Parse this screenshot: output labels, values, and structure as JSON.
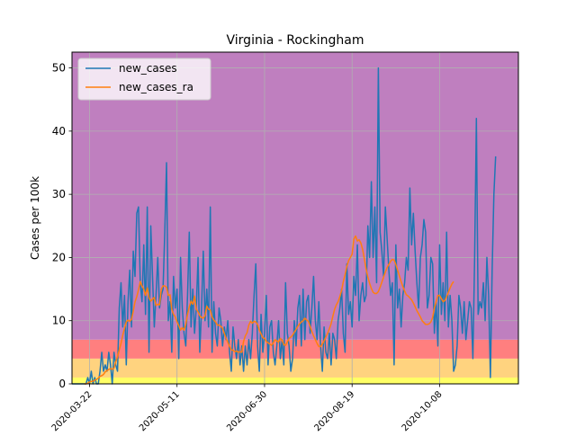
{
  "chart_data": {
    "type": "line",
    "title": "Virginia - Rockingham",
    "xlabel": "",
    "ylabel": "Cases per 100k",
    "grid": true,
    "legend_position": "top-left",
    "x_domain": [
      "2020-03-12",
      "2020-11-22"
    ],
    "ylim": [
      0,
      52.5
    ],
    "yticks": [
      0,
      10,
      20,
      30,
      40,
      50
    ],
    "xticks": [
      "2020-03-22",
      "2020-05-11",
      "2020-06-30",
      "2020-08-19",
      "2020-10-08"
    ],
    "bands": [
      {
        "from": 0,
        "to": 1,
        "color": "#ffff66"
      },
      {
        "from": 1,
        "to": 4,
        "color": "#ffd37f"
      },
      {
        "from": 4,
        "to": 7,
        "color": "#ff7f7f"
      },
      {
        "from": 7,
        "to": 52.5,
        "color": "#bf7fbf"
      }
    ],
    "series": [
      {
        "name": "new_cases",
        "color": "#1f77b4",
        "start": "2020-03-12",
        "values": [
          0,
          0,
          0,
          0,
          0,
          0,
          0,
          0,
          0,
          1,
          0,
          2,
          0,
          1,
          0,
          0,
          2,
          5,
          2,
          3,
          2,
          5,
          3,
          0,
          5,
          3,
          2,
          12,
          16,
          9,
          14,
          3,
          13,
          18,
          9,
          21,
          17,
          27,
          28,
          16,
          13,
          22,
          11,
          28,
          5,
          25,
          17,
          9,
          14,
          20,
          12,
          14,
          15,
          24,
          35,
          10,
          13,
          5,
          17,
          12,
          15,
          4,
          20,
          12,
          8,
          6,
          14,
          24,
          9,
          15,
          8,
          12,
          20,
          5,
          12,
          21,
          10,
          15,
          9,
          28,
          5,
          13,
          8,
          6,
          12,
          10,
          6,
          9,
          7,
          10,
          5,
          2,
          9,
          6,
          4,
          7,
          3,
          6,
          2,
          6,
          3,
          7,
          4,
          8,
          14,
          19,
          6,
          2,
          11,
          5,
          8,
          14,
          3,
          9,
          10,
          5,
          3,
          6,
          10,
          4,
          7,
          3,
          16,
          8,
          6,
          2,
          4,
          10,
          6,
          12,
          14,
          6,
          15,
          7,
          13,
          14,
          8,
          12,
          17,
          10,
          7,
          13,
          6,
          2,
          9,
          5,
          4,
          8,
          3,
          8,
          7,
          4,
          10,
          12,
          15,
          8,
          5,
          19,
          11,
          13,
          9,
          17,
          14,
          22,
          10,
          14,
          16,
          13,
          14,
          25,
          20,
          32,
          20,
          28,
          16,
          50,
          24,
          21,
          17,
          28,
          23,
          18,
          14,
          16,
          3,
          22,
          12,
          15,
          9,
          14,
          16,
          20,
          18,
          31,
          22,
          27,
          21,
          16,
          12,
          20,
          22,
          26,
          24,
          12,
          14,
          20,
          19,
          8,
          13,
          6,
          22,
          11,
          16,
          10,
          24,
          9,
          14,
          10,
          2,
          3,
          6,
          14,
          12,
          8,
          13,
          7,
          10,
          13,
          12,
          4,
          20,
          42,
          11,
          13,
          12,
          16,
          10,
          20,
          14,
          1,
          18,
          30,
          36
        ]
      },
      {
        "name": "new_cases_ra",
        "color": "#ff7f0e",
        "start": "2020-03-12",
        "values": [
          null,
          null,
          null,
          null,
          null,
          null,
          null,
          0.0,
          0.0,
          0.1,
          0.3,
          0.4,
          0.4,
          0.6,
          0.7,
          0.9,
          1.2,
          1.3,
          1.5,
          1.9,
          2.1,
          2.3,
          2.4,
          2.3,
          2.5,
          3.5,
          4.3,
          5.4,
          6.4,
          7.7,
          8.8,
          9.8,
          10.1,
          9.9,
          10.2,
          11.5,
          13.0,
          13.8,
          14.9,
          16.2,
          15.5,
          15.0,
          14.0,
          15.2,
          13.6,
          13.1,
          13.4,
          13.7,
          12.4,
          12.6,
          12.5,
          15.0,
          15.5,
          15.5,
          15.3,
          14.0,
          14.1,
          11.8,
          11.0,
          10.6,
          9.8,
          9.2,
          8.5,
          8.9,
          8.5,
          9.4,
          11.0,
          12.2,
          13.1,
          12.6,
          13.9,
          11.8,
          11.4,
          10.8,
          10.5,
          10.4,
          10.8,
          12.3,
          11.8,
          11.7,
          10.6,
          10.1,
          9.8,
          9.3,
          9.3,
          9.1,
          8.8,
          8.0,
          7.2,
          6.6,
          5.9,
          5.4,
          5.3,
          5.1,
          5.2,
          5.0,
          5.1,
          5.0,
          6.7,
          7.6,
          8.1,
          9.3,
          9.9,
          9.6,
          9.9,
          9.8,
          9.4,
          8.5,
          7.9,
          7.3,
          7.2,
          6.7,
          6.5,
          6.3,
          6.1,
          6.5,
          7.0,
          6.8,
          6.6,
          7.2,
          6.9,
          6.2,
          6.1,
          6.6,
          7.2,
          7.4,
          7.7,
          8.2,
          8.6,
          9.1,
          9.5,
          9.8,
          10.0,
          10.4,
          10.1,
          9.9,
          9.1,
          8.3,
          7.6,
          7.0,
          6.4,
          5.9,
          5.9,
          6.3,
          6.8,
          7.4,
          8.0,
          8.7,
          9.5,
          10.7,
          11.8,
          12.5,
          13.0,
          13.8,
          14.8,
          16.2,
          17.3,
          18.6,
          19.5,
          20.0,
          20.5,
          22.9,
          23.4,
          22.6,
          22.8,
          22.3,
          21.3,
          19.8,
          18.2,
          16.9,
          15.9,
          15.1,
          14.5,
          14.3,
          14.3,
          14.6,
          15.3,
          16.1,
          16.9,
          17.7,
          18.4,
          18.9,
          19.4,
          19.7,
          19.6,
          18.9,
          18.0,
          17.1,
          16.2,
          15.4,
          14.7,
          14.1,
          13.9,
          13.6,
          13.3,
          12.8,
          12.2,
          11.6,
          11.1,
          10.6,
          10.0,
          9.7,
          9.4,
          9.4,
          9.5,
          9.8,
          10.5,
          12.0,
          13.0,
          14.0,
          14.0,
          13.5,
          13.0,
          13.2,
          13.8,
          14.5,
          15.2,
          15.8,
          16.2
        ]
      }
    ]
  }
}
